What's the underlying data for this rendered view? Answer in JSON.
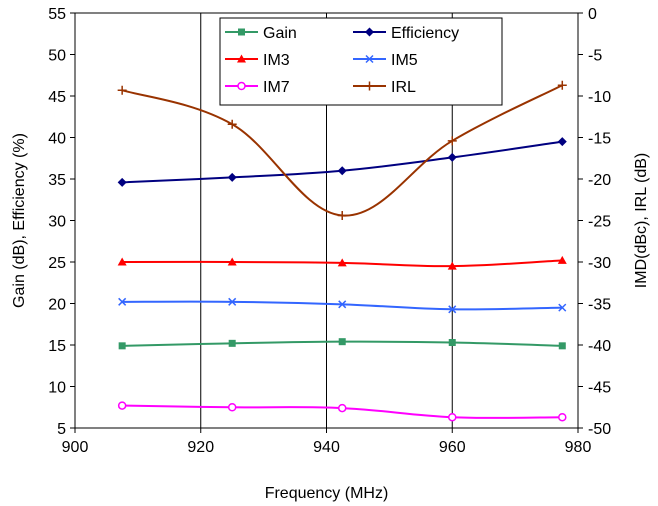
{
  "chart_data": {
    "type": "line",
    "xlabel": "Frequency (MHz)",
    "ylabel": "Gain (dB), Efficiency (%)",
    "y2label": "IMD(dBc), IRL (dB)",
    "xlim": [
      900,
      980
    ],
    "ylim": [
      5,
      55
    ],
    "y2lim": [
      -50,
      0
    ],
    "x_ticks": [
      900,
      920,
      940,
      960,
      980
    ],
    "y_ticks": [
      5,
      10,
      15,
      20,
      25,
      30,
      35,
      40,
      45,
      50,
      55
    ],
    "y2_ticks": [
      -50,
      -45,
      -40,
      -35,
      -30,
      -25,
      -20,
      -15,
      -10,
      -5,
      0
    ],
    "grid": "vertical",
    "legend": "top-center",
    "series": [
      {
        "name": "Gain",
        "axis": "left",
        "color": "#339966",
        "marker": "square",
        "x": [
          907.5,
          925,
          942.5,
          960,
          977.5
        ],
        "values": [
          14.9,
          15.2,
          15.4,
          15.3,
          14.9
        ]
      },
      {
        "name": "Efficiency",
        "axis": "left",
        "color": "#000080",
        "marker": "diamond",
        "x": [
          907.5,
          925,
          942.5,
          960,
          977.5
        ],
        "values": [
          34.6,
          35.2,
          36.0,
          37.6,
          39.5
        ]
      },
      {
        "name": "IM3",
        "axis": "right",
        "color": "#ff0000",
        "marker": "triangle",
        "x": [
          907.5,
          925,
          942.5,
          960,
          977.5
        ],
        "values": [
          -30.0,
          -30.0,
          -30.1,
          -30.5,
          -29.8
        ]
      },
      {
        "name": "IM5",
        "axis": "right",
        "color": "#3366ff",
        "marker": "x",
        "x": [
          907.5,
          925,
          942.5,
          960,
          977.5
        ],
        "values": [
          -34.8,
          -34.8,
          -35.1,
          -35.7,
          -35.5
        ]
      },
      {
        "name": "IM7",
        "axis": "right",
        "color": "#ff00ff",
        "marker": "circle",
        "x": [
          907.5,
          925,
          942.5,
          960,
          977.5
        ],
        "values": [
          -47.3,
          -47.5,
          -47.6,
          -48.7,
          -48.7
        ]
      },
      {
        "name": "IRL",
        "axis": "right",
        "color": "#993300",
        "marker": "plus",
        "x": [
          907.5,
          925,
          942.5,
          960,
          977.5
        ],
        "values": [
          -9.3,
          -13.4,
          -24.4,
          -15.4,
          -8.7
        ]
      }
    ]
  }
}
